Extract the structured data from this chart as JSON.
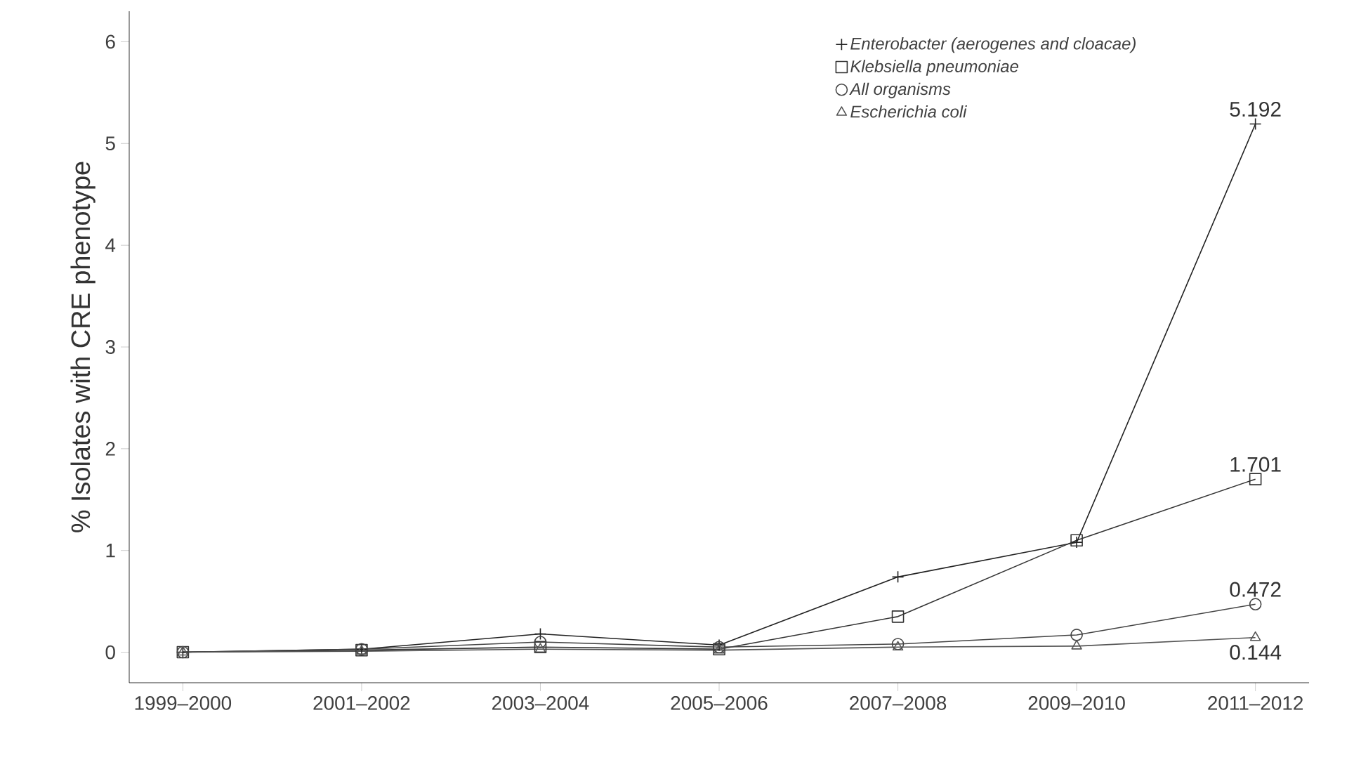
{
  "chart_data": {
    "type": "line",
    "ylabel": "% Isolates with CRE phenotype",
    "categories": [
      "1999–2000",
      "2001–2002",
      "2003–2004",
      "2005–2006",
      "2007–2008",
      "2009–2010",
      "2011–2012"
    ],
    "series": [
      {
        "name": "Enterobacter (aerogenes and cloacae)",
        "color": "#222222",
        "marker": "cross",
        "values": [
          0,
          0.03,
          0.18,
          0.07,
          0.74,
          1.08,
          5.192
        ],
        "value_labels": [
          null,
          null,
          null,
          null,
          null,
          null,
          "5.192"
        ]
      },
      {
        "name": "Klebsiella pneumoniae",
        "color": "#333333",
        "marker": "square",
        "values": [
          0,
          0.02,
          0.05,
          0.03,
          0.35,
          1.1,
          1.701
        ],
        "value_labels": [
          null,
          null,
          null,
          null,
          null,
          null,
          "1.701"
        ]
      },
      {
        "name": "All organisms",
        "color": "#444444",
        "marker": "circle",
        "values": [
          0,
          0.03,
          0.1,
          0.05,
          0.08,
          0.17,
          0.472
        ],
        "value_labels": [
          null,
          null,
          null,
          null,
          null,
          null,
          "0.472"
        ]
      },
      {
        "name": "Escherichia coli",
        "color": "#555555",
        "marker": "triangle",
        "values": [
          0,
          0.01,
          0.03,
          0.02,
          0.05,
          0.06,
          0.144
        ],
        "value_labels": [
          null,
          null,
          null,
          null,
          null,
          null,
          "0.144"
        ]
      }
    ],
    "ylim": [
      -0.3,
      6.3
    ],
    "yticks": [
      0,
      1,
      2,
      3,
      4,
      5,
      6
    ],
    "grid": false,
    "legend": "top right",
    "line_style": "solid"
  }
}
